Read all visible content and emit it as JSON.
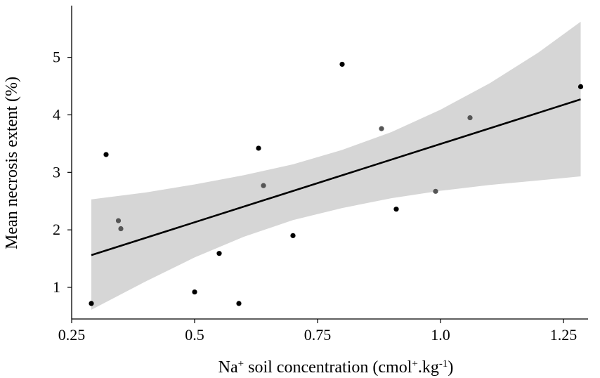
{
  "chart_data": {
    "type": "scatter",
    "xlabel_parts": {
      "pre": "Na",
      "sup1": "+",
      "mid": " soil concentration (cmol",
      "sup2": "+",
      "mid2": ".kg",
      "sup3": "-1",
      "post": ")"
    },
    "ylabel": "Mean necrosis extent (%)",
    "xlim": [
      0.25,
      1.3
    ],
    "ylim": [
      0.45,
      5.9
    ],
    "x_ticks": [
      0.25,
      0.5,
      0.75,
      1.0,
      1.25
    ],
    "x_tick_labels": [
      "0.25",
      "0.5",
      "0.75",
      "1.0",
      "1.25"
    ],
    "y_ticks": [
      1,
      2,
      3,
      4,
      5
    ],
    "y_tick_labels": [
      "1",
      "2",
      "3",
      "4",
      "5"
    ],
    "points": [
      {
        "x": 0.29,
        "y": 0.72,
        "shade": "black"
      },
      {
        "x": 0.32,
        "y": 3.31,
        "shade": "black"
      },
      {
        "x": 0.345,
        "y": 2.16,
        "shade": "grey"
      },
      {
        "x": 0.35,
        "y": 2.02,
        "shade": "grey"
      },
      {
        "x": 0.5,
        "y": 0.92,
        "shade": "black"
      },
      {
        "x": 0.55,
        "y": 1.59,
        "shade": "black"
      },
      {
        "x": 0.59,
        "y": 0.72,
        "shade": "black"
      },
      {
        "x": 0.63,
        "y": 3.42,
        "shade": "black"
      },
      {
        "x": 0.64,
        "y": 2.77,
        "shade": "grey"
      },
      {
        "x": 0.7,
        "y": 1.9,
        "shade": "black"
      },
      {
        "x": 0.8,
        "y": 4.88,
        "shade": "black"
      },
      {
        "x": 0.88,
        "y": 3.76,
        "shade": "grey"
      },
      {
        "x": 0.91,
        "y": 2.36,
        "shade": "black"
      },
      {
        "x": 0.99,
        "y": 2.67,
        "shade": "grey"
      },
      {
        "x": 1.06,
        "y": 3.95,
        "shade": "grey"
      },
      {
        "x": 1.285,
        "y": 4.49,
        "shade": "black"
      }
    ],
    "fit_line": {
      "x": [
        0.29,
        1.285
      ],
      "y": [
        1.56,
        4.27
      ]
    },
    "confidence_band": {
      "x": [
        0.29,
        0.4,
        0.5,
        0.6,
        0.7,
        0.8,
        0.9,
        1.0,
        1.1,
        1.2,
        1.285
      ],
      "upper": [
        2.53,
        2.65,
        2.79,
        2.95,
        3.14,
        3.39,
        3.7,
        4.09,
        4.55,
        5.09,
        5.62
      ],
      "lower": [
        0.61,
        1.1,
        1.52,
        1.88,
        2.17,
        2.38,
        2.55,
        2.68,
        2.78,
        2.86,
        2.93
      ]
    },
    "band_color": "#d6d6d6",
    "point_colors": {
      "black": "#000000",
      "grey": "#555555"
    },
    "grid": false,
    "legend": "none"
  }
}
